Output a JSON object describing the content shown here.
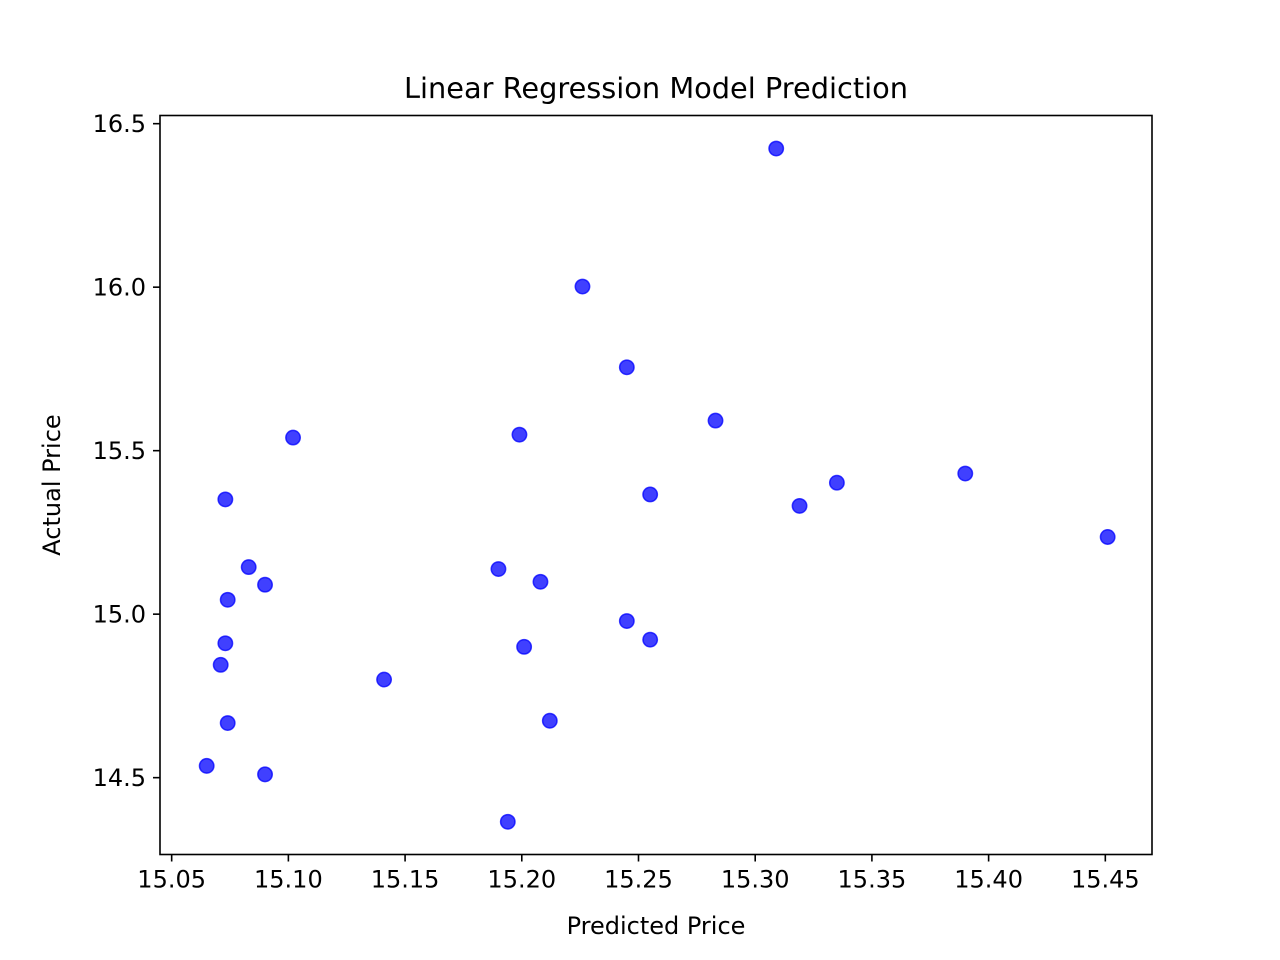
{
  "chart_data": {
    "type": "scatter",
    "title": "Linear Regression Model Prediction",
    "xlabel": "Predicted Price",
    "ylabel": "Actual Price",
    "xlim": [
      15.045,
      15.47
    ],
    "ylim": [
      14.265,
      16.525
    ],
    "xticks": [
      15.05,
      15.1,
      15.15,
      15.2,
      15.25,
      15.3,
      15.35,
      15.4,
      15.45
    ],
    "xtick_labels": [
      "15.05",
      "15.10",
      "15.15",
      "15.20",
      "15.25",
      "15.30",
      "15.35",
      "15.40",
      "15.45"
    ],
    "yticks": [
      14.5,
      15.0,
      15.5,
      16.0,
      16.5
    ],
    "ytick_labels": [
      "14.5",
      "15.0",
      "15.5",
      "16.0",
      "16.5"
    ],
    "grid": false,
    "marker_color": "#0000ff",
    "marker_alpha": 0.75,
    "series": [
      {
        "x": [
          15.065,
          15.071,
          15.073,
          15.073,
          15.074,
          15.074,
          15.083,
          15.09,
          15.09,
          15.102,
          15.141,
          15.19,
          15.194,
          15.199,
          15.201,
          15.208,
          15.212,
          15.226,
          15.245,
          15.245,
          15.255,
          15.255,
          15.283,
          15.309,
          15.319,
          15.335,
          15.39,
          15.451
        ],
        "y": [
          14.536,
          14.845,
          14.911,
          15.351,
          14.667,
          15.044,
          15.144,
          15.09,
          14.51,
          15.54,
          14.8,
          15.138,
          14.365,
          15.549,
          14.9,
          15.099,
          14.674,
          16.002,
          15.755,
          14.979,
          15.366,
          14.922,
          15.592,
          16.424,
          15.331,
          15.402,
          15.43,
          15.236
        ]
      }
    ]
  }
}
